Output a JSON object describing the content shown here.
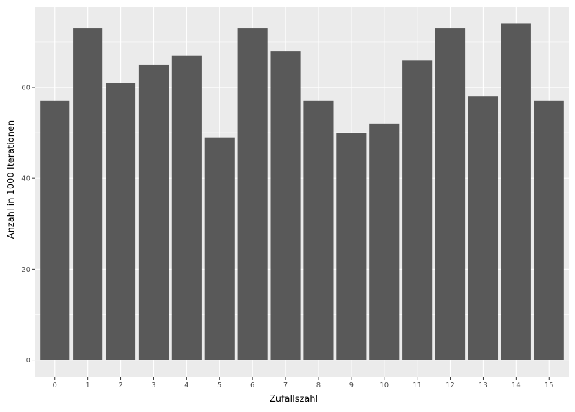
{
  "chart_data": {
    "type": "bar",
    "title": "",
    "xlabel": "Zufallszahl",
    "ylabel": "Anzahl in 1000 Iterationen",
    "categories": [
      "0",
      "1",
      "2",
      "3",
      "4",
      "5",
      "6",
      "7",
      "8",
      "9",
      "10",
      "11",
      "12",
      "13",
      "14",
      "15"
    ],
    "values": [
      57,
      73,
      61,
      65,
      67,
      49,
      73,
      68,
      57,
      50,
      52,
      66,
      73,
      58,
      74,
      57
    ],
    "ylim": [
      -3.7,
      77.7
    ],
    "yticks": [
      0,
      20,
      40,
      60
    ],
    "grid": true,
    "legend": "none",
    "colors": {
      "bar": "#595959",
      "panel": "#ebebeb",
      "grid_major": "#ffffff",
      "tick_text": "#4d4d4d",
      "axis_title": "#000000"
    }
  }
}
